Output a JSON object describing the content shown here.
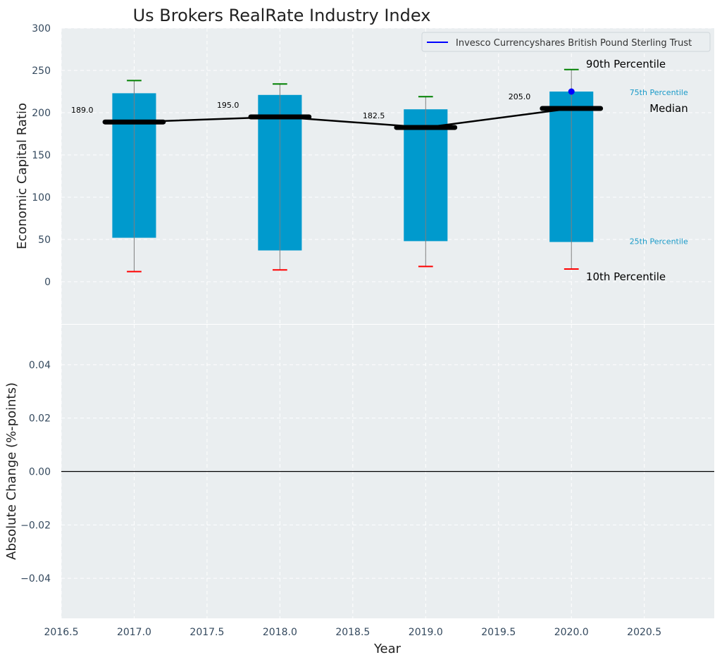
{
  "chart_data": {
    "type": "bar",
    "title": "Us Brokers RealRate Industry Index",
    "xlabel": "Year",
    "top_panel": {
      "ylabel": "Economic Capital Ratio",
      "ylim": [
        -50,
        300
      ],
      "yticks": [
        0,
        50,
        100,
        150,
        200,
        250,
        300
      ],
      "years": [
        2017,
        2018,
        2019,
        2020
      ],
      "p10": [
        12,
        14,
        18,
        15
      ],
      "p25": [
        52,
        37,
        48,
        47
      ],
      "median": [
        189.0,
        195.0,
        182.5,
        205.0
      ],
      "median_labels": [
        "189.0",
        "195.0",
        "182.5",
        "205.0"
      ],
      "p75": [
        223,
        221,
        204,
        225
      ],
      "p90": [
        238,
        234,
        219,
        251
      ],
      "series": [
        {
          "name": "Invesco Currencyshares British Pound Sterling Trust",
          "x": [
            2020
          ],
          "y": [
            225
          ]
        }
      ],
      "annotations": {
        "p90": "90th Percentile",
        "p75": "75th Percentile",
        "median": "Median",
        "p25": "25th Percentile",
        "p10": "10th Percentile"
      }
    },
    "bottom_panel": {
      "ylabel": "Absolute Change (%-points)",
      "ylim": [
        -0.055,
        0.055
      ],
      "yticks": [
        -0.04,
        -0.02,
        0.0,
        0.02,
        0.04
      ],
      "ytick_labels": [
        "−0.04",
        "−0.02",
        "0.00",
        "0.02",
        "0.04"
      ],
      "zero_line": 0
    },
    "xlim": [
      2016.5,
      2020.98
    ],
    "xticks": [
      2016.5,
      2017.0,
      2017.5,
      2018.0,
      2018.5,
      2019.0,
      2019.5,
      2020.0,
      2020.5
    ],
    "xtick_labels": [
      "2016.5",
      "2017.0",
      "2017.5",
      "2018.0",
      "2018.5",
      "2019.0",
      "2019.5",
      "2020.0",
      "2020.5"
    ],
    "grid": true,
    "legend_position": "top-right",
    "colors": {
      "background": "#eaeef0",
      "bar": "#009acd",
      "median": "#000000",
      "p90_cap": "#008000",
      "p10_cap": "#ff0000",
      "whisker": "#7f7f7f",
      "series": "#0000ff",
      "tick_text": "#34495e",
      "p_label_small": "#1a9ac8"
    }
  }
}
